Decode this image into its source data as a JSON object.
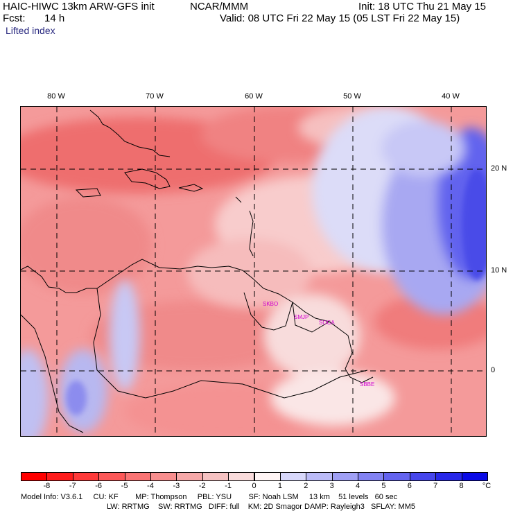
{
  "header": {
    "model_line": "HAIC-HIWC 13km ARW-GFS init",
    "org": "NCAR/MMM",
    "init": "Init: 18 UTC Thu 21 May 15",
    "fcst_label": "Fcst:",
    "fcst_value": "14 h",
    "valid": "Valid: 08 UTC Fri 22 May 15 (05 LST Fri 22 May 15)",
    "field": "Lifted index"
  },
  "map": {
    "lon_labels": [
      "80 W",
      "70 W",
      "60 W",
      "50 W",
      "40 W"
    ],
    "lat_labels": [
      "20 N",
      "10 N",
      "0"
    ],
    "city_labels": [
      "SKBO",
      "SMJP",
      "SOCA",
      "SBBE"
    ],
    "background_color": "#f49a9a",
    "positive_color": "#5a5cf0"
  },
  "colorbar": {
    "values": [
      "-8",
      "-7",
      "-6",
      "-5",
      "-4",
      "-3",
      "-2",
      "-1",
      "0",
      "1",
      "2",
      "3",
      "4",
      "5",
      "6",
      "7",
      "8"
    ],
    "unit": "°C",
    "colors": [
      "#ff1c1c",
      "#ff3a3a",
      "#fc5858",
      "#fa7474",
      "#f88e8e",
      "#f6a8a8",
      "#f6c2c2",
      "#fadcdc",
      "#fff5f5",
      "#d8d8fb",
      "#bcbcf8",
      "#a0a0f5",
      "#8282f2",
      "#6464ef",
      "#4646ec",
      "#2828e9",
      "#0a0ae6"
    ]
  },
  "footer": {
    "line1": "Model Info: V3.6.1     CU: KF        MP: Thompson     PBL: YSU        SF: Noah LSM     13 km    51 levels   60 sec",
    "line2": "LW: RRTMG    SW: RRTMG   DIFF: full    KM: 2D Smagor DAMP: Rayleigh3   SFLAY: MM5"
  }
}
